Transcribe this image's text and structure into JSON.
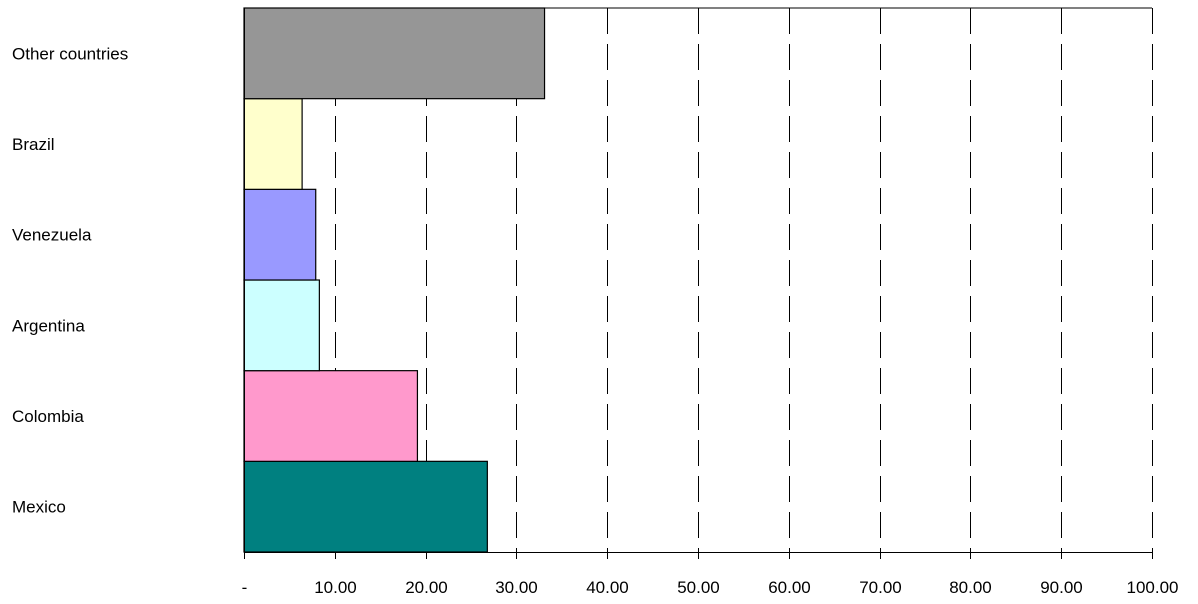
{
  "chart_data": {
    "type": "bar",
    "orientation": "horizontal",
    "categories": [
      "Mexico",
      "Colombia",
      "Argentina",
      "Venezuela",
      "Brazil",
      "Other countries"
    ],
    "values": [
      26.8,
      19.1,
      8.3,
      7.9,
      6.4,
      33.1
    ],
    "bar_colors": [
      "#008080",
      "#FF99CC",
      "#CCFFFF",
      "#9999FF",
      "#FFFFCC",
      "#969696"
    ],
    "xlim": [
      0,
      100
    ],
    "x_ticks": [
      0,
      10,
      20,
      30,
      40,
      50,
      60,
      70,
      80,
      90,
      100
    ],
    "x_tick_labels": [
      "-",
      "10.00",
      "20.00",
      "30.00",
      "40.00",
      "50.00",
      "60.00",
      "70.00",
      "80.00",
      "90.00",
      "100.00"
    ],
    "grid": "vertical dashed",
    "title": "",
    "xlabel": "",
    "ylabel": "",
    "legend": "none"
  }
}
